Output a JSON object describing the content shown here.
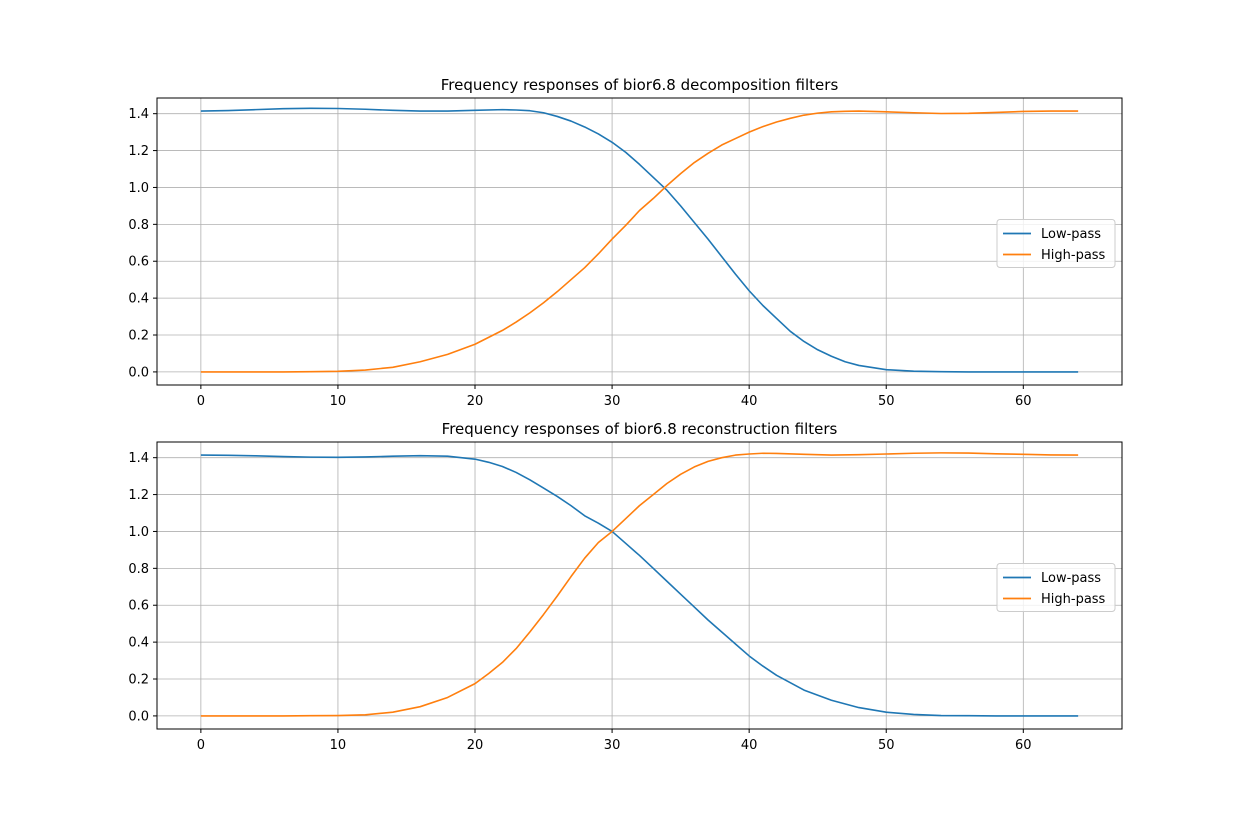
{
  "chart_data": [
    {
      "type": "line",
      "title": "Frequency responses of bior6.8 decomposition filters",
      "xlabel": "",
      "ylabel": "",
      "xlim": [
        -3.2,
        67.2
      ],
      "ylim": [
        -0.071,
        1.485
      ],
      "xticks": [
        0,
        10,
        20,
        30,
        40,
        50,
        60
      ],
      "yticks": [
        0.0,
        0.2,
        0.4,
        0.6,
        0.8,
        1.0,
        1.2,
        1.4
      ],
      "grid": true,
      "legend_position": "center-right",
      "x": [
        0,
        2,
        4,
        6,
        8,
        10,
        12,
        14,
        16,
        18,
        20,
        22,
        23,
        24,
        25,
        26,
        27,
        28,
        29,
        30,
        31,
        32,
        33,
        34,
        35,
        36,
        37,
        38,
        39,
        40,
        41,
        42,
        43,
        44,
        45,
        46,
        47,
        48,
        50,
        52,
        54,
        56,
        58,
        60,
        62,
        64
      ],
      "series": [
        {
          "name": "Low-pass",
          "color": "#1f77b4",
          "values": [
            1.414,
            1.417,
            1.422,
            1.427,
            1.429,
            1.428,
            1.424,
            1.418,
            1.414,
            1.414,
            1.418,
            1.422,
            1.42,
            1.416,
            1.405,
            1.385,
            1.36,
            1.328,
            1.29,
            1.245,
            1.19,
            1.125,
            1.055,
            0.985,
            0.9,
            0.81,
            0.72,
            0.625,
            0.53,
            0.44,
            0.36,
            0.29,
            0.22,
            0.165,
            0.12,
            0.085,
            0.055,
            0.035,
            0.012,
            0.004,
            0.001,
            0.0,
            0.0,
            0.0,
            0.0,
            0.0
          ]
        },
        {
          "name": "High-pass",
          "color": "#ff7f0e",
          "values": [
            0.0,
            0.0,
            0.0,
            0.0,
            0.001,
            0.003,
            0.01,
            0.025,
            0.055,
            0.095,
            0.15,
            0.225,
            0.27,
            0.32,
            0.375,
            0.435,
            0.5,
            0.565,
            0.64,
            0.72,
            0.795,
            0.875,
            0.94,
            1.01,
            1.075,
            1.135,
            1.185,
            1.23,
            1.265,
            1.3,
            1.33,
            1.355,
            1.375,
            1.392,
            1.403,
            1.41,
            1.413,
            1.414,
            1.41,
            1.405,
            1.401,
            1.402,
            1.407,
            1.412,
            1.414,
            1.414
          ]
        }
      ]
    },
    {
      "type": "line",
      "title": "Frequency responses of bior6.8 reconstruction filters",
      "xlabel": "",
      "ylabel": "",
      "xlim": [
        -3.2,
        67.2
      ],
      "ylim": [
        -0.071,
        1.485
      ],
      "xticks": [
        0,
        10,
        20,
        30,
        40,
        50,
        60
      ],
      "yticks": [
        0.0,
        0.2,
        0.4,
        0.6,
        0.8,
        1.0,
        1.2,
        1.4
      ],
      "grid": true,
      "legend_position": "center-right",
      "x": [
        0,
        2,
        4,
        6,
        8,
        10,
        12,
        14,
        16,
        18,
        20,
        21,
        22,
        23,
        24,
        25,
        26,
        27,
        28,
        29,
        30,
        31,
        32,
        33,
        34,
        35,
        36,
        37,
        38,
        39,
        40,
        41,
        42,
        44,
        46,
        48,
        50,
        52,
        54,
        56,
        58,
        60,
        62,
        64
      ],
      "series": [
        {
          "name": "Low-pass",
          "color": "#1f77b4",
          "values": [
            1.414,
            1.413,
            1.41,
            1.406,
            1.403,
            1.402,
            1.404,
            1.408,
            1.411,
            1.408,
            1.392,
            1.375,
            1.352,
            1.32,
            1.28,
            1.235,
            1.19,
            1.14,
            1.085,
            1.045,
            1.0,
            0.935,
            0.87,
            0.8,
            0.73,
            0.66,
            0.59,
            0.52,
            0.455,
            0.39,
            0.325,
            0.27,
            0.22,
            0.14,
            0.085,
            0.045,
            0.02,
            0.008,
            0.002,
            0.001,
            0.0,
            0.0,
            0.0,
            0.0
          ]
        },
        {
          "name": "High-pass",
          "color": "#ff7f0e",
          "values": [
            0.0,
            0.0,
            0.0,
            0.0,
            0.001,
            0.002,
            0.006,
            0.02,
            0.05,
            0.1,
            0.175,
            0.23,
            0.29,
            0.365,
            0.455,
            0.55,
            0.65,
            0.755,
            0.855,
            0.94,
            1.0,
            1.07,
            1.14,
            1.2,
            1.26,
            1.31,
            1.35,
            1.38,
            1.4,
            1.414,
            1.42,
            1.424,
            1.423,
            1.418,
            1.414,
            1.416,
            1.42,
            1.424,
            1.426,
            1.425,
            1.421,
            1.418,
            1.415,
            1.414
          ]
        }
      ]
    }
  ]
}
